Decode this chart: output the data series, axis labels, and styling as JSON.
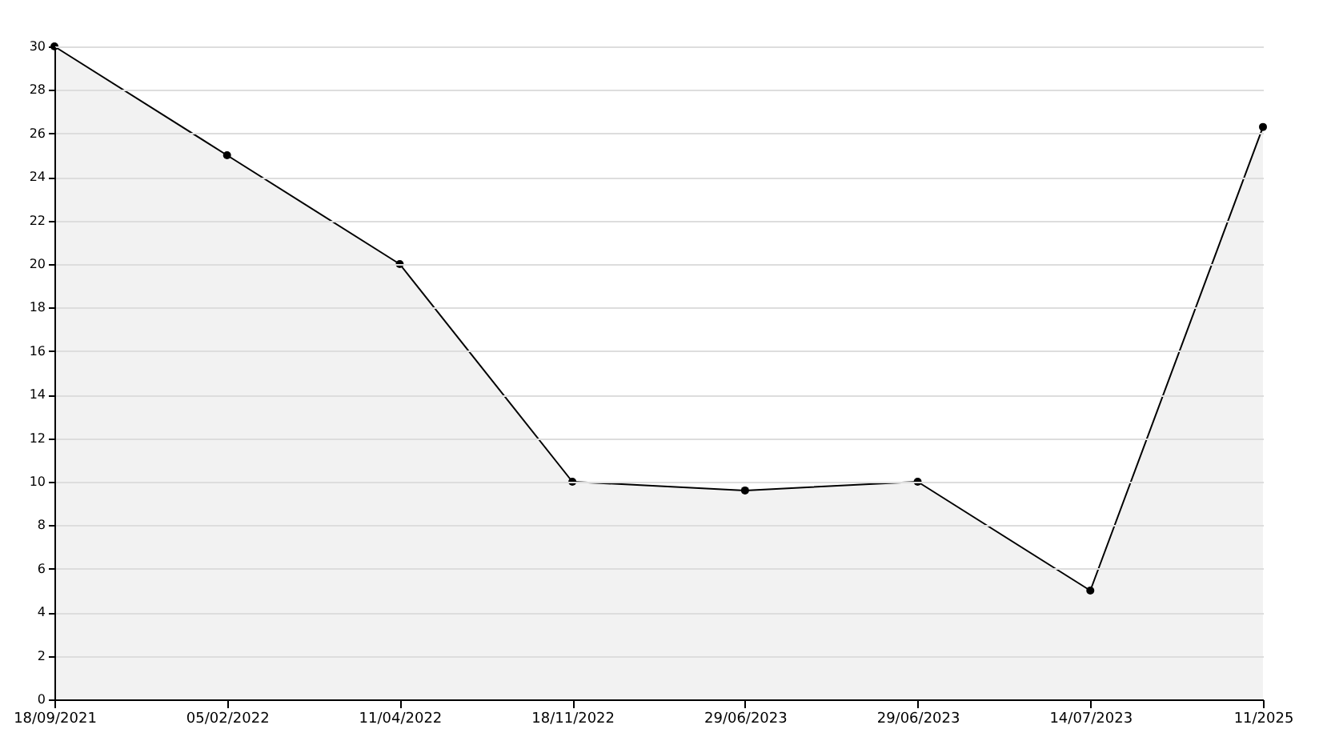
{
  "chart_data": {
    "type": "area",
    "categories": [
      "18/09/2021",
      "05/02/2022",
      "11/04/2022",
      "18/11/2022",
      "29/06/2023",
      "29/06/2023",
      "14/07/2023",
      "11/2025"
    ],
    "series": [
      {
        "color": "#000000",
        "values": [
          30,
          25,
          20,
          10,
          9.6,
          10,
          5,
          26.3
        ]
      }
    ],
    "ylim": [
      0,
      30
    ],
    "yticks": [
      0,
      2,
      4,
      6,
      8,
      10,
      12,
      14,
      16,
      18,
      20,
      22,
      24,
      26,
      28,
      30
    ],
    "grid": "y",
    "marker": "circle",
    "line_style": "solid"
  }
}
